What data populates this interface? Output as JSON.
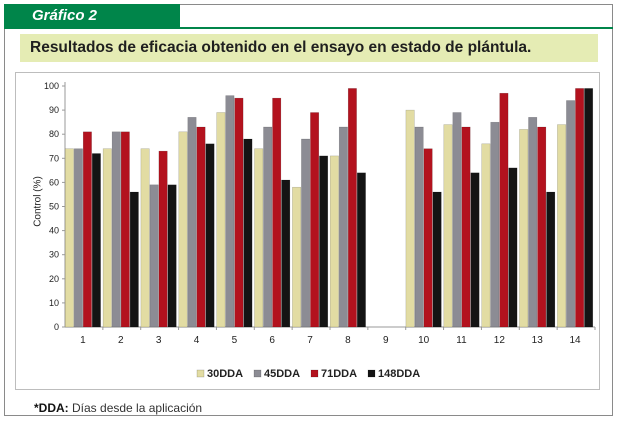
{
  "header": {
    "tab_label": "Gráfico 2",
    "title": "Resultados de eficacia obtenido en el ensayo en estado de plántula."
  },
  "footnote": {
    "term": "*DDA:",
    "text": " Días desde la aplicación"
  },
  "colors": {
    "30DDA": "#e2dca3",
    "45DDA": "#8c8c94",
    "71DDA": "#b3121e",
    "148DDA": "#141414"
  },
  "chart_data": {
    "type": "bar",
    "title": "",
    "xlabel": "",
    "ylabel": "Control (%)",
    "ylim": [
      0,
      100
    ],
    "yticks": [
      0,
      10,
      20,
      30,
      40,
      50,
      60,
      70,
      80,
      90,
      100
    ],
    "grid": false,
    "legend_position": "bottom",
    "categories": [
      "1",
      "2",
      "3",
      "4",
      "5",
      "6",
      "7",
      "8",
      "9",
      "10",
      "11",
      "12",
      "13",
      "14"
    ],
    "series": [
      {
        "name": "30DDA",
        "values": [
          74,
          74,
          74,
          81,
          89,
          74,
          58,
          71,
          null,
          90,
          84,
          76,
          82,
          84
        ]
      },
      {
        "name": "45DDA",
        "values": [
          74,
          81,
          59,
          87,
          96,
          83,
          78,
          83,
          null,
          83,
          89,
          85,
          87,
          94
        ]
      },
      {
        "name": "71DDA",
        "values": [
          81,
          81,
          73,
          83,
          95,
          95,
          89,
          99,
          null,
          74,
          83,
          97,
          83,
          99
        ]
      },
      {
        "name": "148DDA",
        "values": [
          72,
          56,
          59,
          76,
          78,
          61,
          71,
          64,
          null,
          56,
          64,
          66,
          56,
          99
        ]
      }
    ]
  }
}
